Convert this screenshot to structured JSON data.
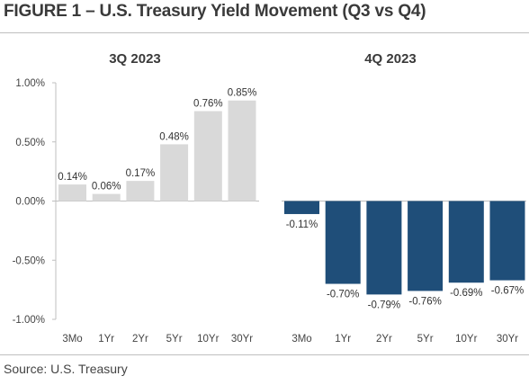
{
  "figure_title": "FIGURE 1 – U.S. Treasury Yield Movement (Q3 vs Q4)",
  "source": "Source: U.S. Treasury",
  "colors": {
    "q3_bar": "#d9d9d9",
    "q4_bar": "#1f4e79",
    "axis": "#bfbfbf",
    "text": "#333333"
  },
  "chart_data": [
    {
      "type": "bar",
      "title": "3Q 2023",
      "categories": [
        "3Mo",
        "1Yr",
        "2Yr",
        "5Yr",
        "10Yr",
        "30Yr"
      ],
      "values": [
        0.14,
        0.06,
        0.17,
        0.48,
        0.76,
        0.85
      ],
      "value_labels": [
        "0.14%",
        "0.06%",
        "0.17%",
        "0.48%",
        "0.76%",
        "0.85%"
      ],
      "ylim": [
        -1.0,
        1.0
      ],
      "yticks": [
        1.0,
        0.5,
        0.0,
        -0.5,
        -1.0
      ],
      "ytick_labels": [
        "1.00%",
        "0.50%",
        "0.00%",
        "-0.50%",
        "-1.00%"
      ],
      "grid": false
    },
    {
      "type": "bar",
      "title": "4Q 2023",
      "categories": [
        "3Mo",
        "1Yr",
        "2Yr",
        "5Yr",
        "10Yr",
        "30Yr"
      ],
      "values": [
        -0.11,
        -0.7,
        -0.79,
        -0.76,
        -0.69,
        -0.67
      ],
      "value_labels": [
        "-0.11%",
        "-0.70%",
        "-0.79%",
        "-0.76%",
        "-0.69%",
        "-0.67%"
      ],
      "ylim": [
        -1.0,
        1.0
      ],
      "grid": false
    }
  ]
}
